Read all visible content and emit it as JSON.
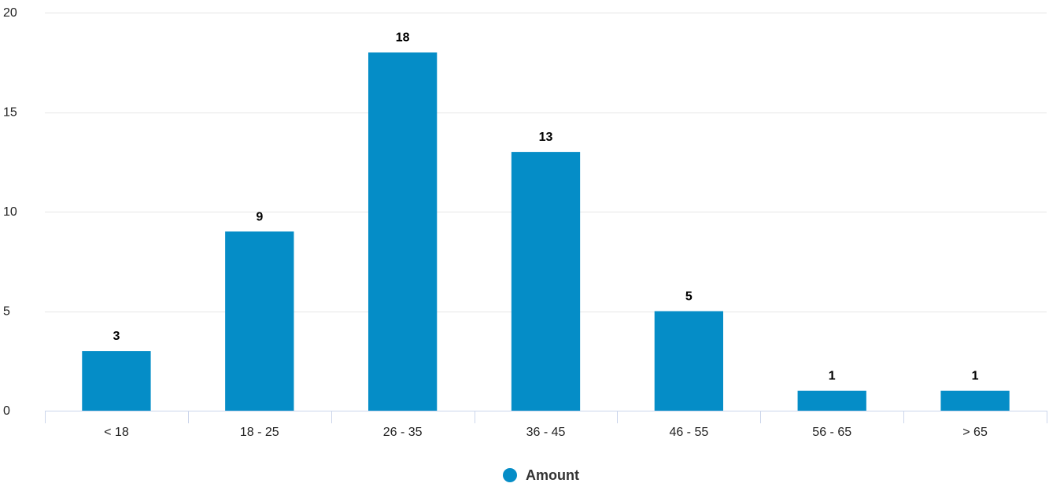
{
  "chart_data": {
    "type": "bar",
    "categories": [
      "< 18",
      "18 - 25",
      "26 - 35",
      "36 - 45",
      "46 - 55",
      "56 - 65",
      "> 65"
    ],
    "series": [
      {
        "name": "Amount",
        "values": [
          3,
          9,
          18,
          13,
          5,
          1,
          1
        ]
      }
    ],
    "title": "",
    "xlabel": "",
    "ylabel": "",
    "ylim": [
      0,
      20
    ],
    "yticks": [
      0,
      5,
      10,
      15,
      20
    ],
    "grid": true,
    "data_labels": true,
    "legend": {
      "position": "bottom-center"
    },
    "colors": {
      "bar": "#058dc7",
      "grid": "#e6e6e6",
      "axis": "#ccd6eb"
    }
  }
}
